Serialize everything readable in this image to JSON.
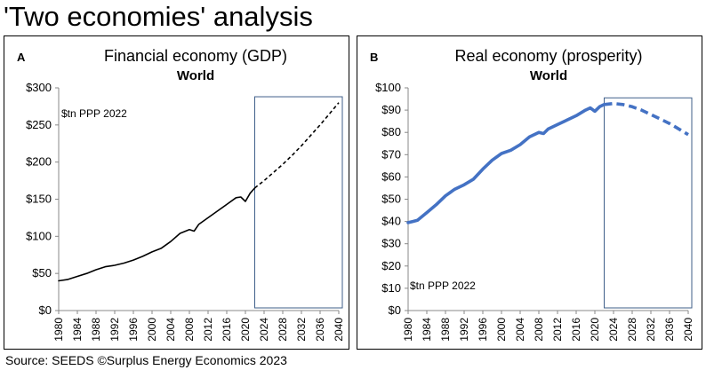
{
  "title": "'Two economies' analysis",
  "source": "Source: SEEDS   ©Surplus Energy Economics 2023",
  "chart_data": [
    {
      "id": "A",
      "type": "line",
      "letter": "A",
      "title": "Financial economy (GDP)",
      "subtitle": "World",
      "unit_note": "$tn  PPP 2022",
      "y_ticks": [
        "$0",
        "$50",
        "$100",
        "$150",
        "$200",
        "$250",
        "$300"
      ],
      "ylim": [
        0,
        300
      ],
      "xlim": [
        1980,
        2040
      ],
      "x_ticks": [
        "1980",
        "1984",
        "1988",
        "1992",
        "1996",
        "2000",
        "2004",
        "2008",
        "2012",
        "2016",
        "2020",
        "2024",
        "2028",
        "2032",
        "2036",
        "2040"
      ],
      "projection_box": {
        "x_from": 2022,
        "x_to": 2040,
        "y_from": 0,
        "y_to": 288
      },
      "color": "#000000",
      "series": [
        {
          "style": "solid",
          "x": [
            1980,
            1982,
            1984,
            1986,
            1988,
            1990,
            1992,
            1994,
            1996,
            1998,
            2000,
            2002,
            2004,
            2006,
            2008,
            2009,
            2010,
            2012,
            2014,
            2016,
            2018,
            2019,
            2020,
            2021,
            2022
          ],
          "y": [
            40,
            42,
            46,
            50,
            55,
            59,
            61,
            64,
            68,
            73,
            79,
            84,
            93,
            104,
            109,
            107,
            116,
            125,
            134,
            143,
            152,
            153,
            147,
            158,
            165
          ]
        },
        {
          "style": "dashed",
          "x": [
            2022,
            2024,
            2026,
            2028,
            2030,
            2032,
            2034,
            2036,
            2038,
            2040
          ],
          "y": [
            165,
            175,
            186,
            197,
            209,
            222,
            236,
            250,
            265,
            280
          ]
        }
      ]
    },
    {
      "id": "B",
      "type": "line",
      "letter": "B",
      "title": "Real economy (prosperity)",
      "subtitle": "World",
      "unit_note": "$tn  PPP 2022",
      "y_ticks": [
        "$0",
        "$10",
        "$20",
        "$30",
        "$40",
        "$50",
        "$60",
        "$70",
        "$80",
        "$90",
        "$100"
      ],
      "ylim": [
        0,
        100
      ],
      "xlim": [
        1980,
        2040
      ],
      "x_ticks": [
        "1980",
        "1984",
        "1988",
        "1992",
        "1996",
        "2000",
        "2004",
        "2008",
        "2012",
        "2016",
        "2020",
        "2024",
        "2028",
        "2032",
        "2036",
        "2040"
      ],
      "projection_box": {
        "x_from": 2022,
        "x_to": 2040,
        "y_from": 0,
        "y_to": 95.5
      },
      "color": "#4472c4",
      "series": [
        {
          "style": "solid",
          "x": [
            1980,
            1981,
            1982,
            1984,
            1986,
            1988,
            1990,
            1992,
            1994,
            1996,
            1998,
            2000,
            2002,
            2004,
            2006,
            2008,
            2009,
            2010,
            2012,
            2014,
            2016,
            2018,
            2019,
            2020,
            2021,
            2022
          ],
          "y": [
            39.5,
            40,
            40.5,
            44,
            47.5,
            51.5,
            54.5,
            56.5,
            59,
            63.5,
            67.5,
            70.5,
            72,
            74.5,
            78,
            80,
            79.5,
            81.5,
            83.5,
            85.5,
            87.5,
            90,
            91,
            89.5,
            91.5,
            92.5
          ]
        },
        {
          "style": "dashed",
          "x": [
            2022,
            2024,
            2026,
            2028,
            2030,
            2032,
            2034,
            2036,
            2038,
            2040
          ],
          "y": [
            92.5,
            93,
            92.5,
            91.5,
            90,
            88,
            86,
            84,
            81.5,
            79
          ]
        }
      ]
    }
  ]
}
